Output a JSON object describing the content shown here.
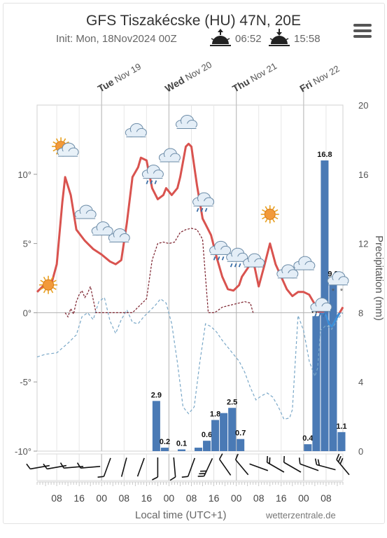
{
  "header": {
    "title": "GFS Tiszakécske (HU) 47N, 20E",
    "init": "Init: Mon, 18Nov2024 00Z",
    "sunrise": "06:52",
    "sunset": "15:58"
  },
  "footer": {
    "xlabel": "Local time (UTC+1)",
    "credit": "wetterzentrale.de"
  },
  "chart_data": {
    "type": "line",
    "x_unit": "hours since Mon 18 Nov 00:00 local",
    "day_labels": [
      {
        "weekday": "Tue",
        "date": "Nov 19",
        "x": 24
      },
      {
        "weekday": "Wed",
        "date": "Nov 20",
        "x": 48
      },
      {
        "weekday": "Thu",
        "date": "Nov 21",
        "x": 72
      },
      {
        "weekday": "Fri",
        "date": "Nov 22",
        "x": 96
      }
    ],
    "x_ticks": [
      {
        "x": 8,
        "label": "08"
      },
      {
        "x": 16,
        "label": "16"
      },
      {
        "x": 24,
        "label": "00"
      },
      {
        "x": 32,
        "label": "08"
      },
      {
        "x": 40,
        "label": "16"
      },
      {
        "x": 48,
        "label": "00"
      },
      {
        "x": 56,
        "label": "08"
      },
      {
        "x": 64,
        "label": "16"
      },
      {
        "x": 72,
        "label": "00"
      },
      {
        "x": 80,
        "label": "08"
      },
      {
        "x": 88,
        "label": "16"
      },
      {
        "x": 96,
        "label": "00"
      },
      {
        "x": 104,
        "label": "08"
      }
    ],
    "x_range": [
      1,
      110
    ],
    "y_left": {
      "ticks": [
        {
          "v": 10,
          "label": "10°"
        },
        {
          "v": 5,
          "label": "5°"
        },
        {
          "v": 0,
          "label": "0°"
        },
        {
          "v": -5,
          "label": "-5°"
        },
        {
          "v": -10,
          "label": "-10°"
        }
      ],
      "range": [
        -10,
        15
      ]
    },
    "y_right": {
      "label": "Precipitation (mm)",
      "ticks": [
        {
          "v": 20,
          "label": "20"
        },
        {
          "v": 16,
          "label": "16"
        },
        {
          "v": 12,
          "label": "12"
        },
        {
          "v": 8,
          "label": "8"
        },
        {
          "v": 4,
          "label": "4"
        },
        {
          "v": 0,
          "label": "0"
        }
      ],
      "range": [
        0,
        20
      ]
    },
    "temperature": {
      "color": "#d9534f",
      "x": [
        1,
        3,
        5,
        6,
        8,
        10,
        11,
        13,
        15,
        18,
        21,
        24,
        27,
        29,
        31,
        33,
        35,
        37,
        38,
        40,
        42,
        44,
        46,
        47,
        49,
        51,
        52,
        54,
        55,
        56,
        58,
        60,
        61,
        63,
        65,
        67,
        69,
        71,
        73,
        74,
        76,
        78,
        80,
        82,
        84,
        86,
        88,
        90,
        92,
        94,
        96,
        98,
        100,
        101,
        102,
        103,
        104,
        105,
        106,
        108,
        110
      ],
      "y": [
        1.5,
        1.9,
        2.0,
        2.0,
        3.5,
        8.0,
        9.8,
        8.5,
        6.0,
        5.2,
        4.6,
        4.2,
        3.7,
        3.5,
        3.8,
        6.5,
        9.8,
        10.5,
        11.2,
        11.0,
        9.0,
        8.2,
        8.5,
        9.0,
        8.5,
        9.0,
        9.8,
        12.0,
        12.2,
        12.0,
        9.2,
        6.8,
        6.4,
        5.6,
        4.0,
        2.6,
        1.7,
        1.6,
        2.0,
        2.6,
        3.2,
        3.8,
        1.9,
        3.4,
        5.0,
        3.5,
        2.6,
        1.7,
        1.2,
        1.5,
        1.5,
        1.3,
        0.6,
        0.1,
        0.0,
        0.0,
        -0.2,
        -0.8,
        -1.0,
        -0.3,
        0.4
      ]
    },
    "dewpoint": {
      "color": "#7aa8c8",
      "x": [
        1,
        4,
        8,
        12,
        15,
        17,
        19,
        21,
        23,
        25,
        27,
        29,
        31,
        33,
        35,
        37,
        39,
        41,
        43,
        45,
        47,
        49,
        51,
        53,
        55,
        57,
        59,
        61,
        63,
        65,
        67,
        69,
        71,
        73,
        75,
        77,
        79,
        81,
        83,
        85,
        87,
        89,
        91,
        92,
        94,
        96,
        98,
        100,
        101,
        102,
        104,
        106,
        108,
        110
      ],
      "y": [
        -3.2,
        -3.0,
        -2.9,
        -2.2,
        -1.6,
        -0.3,
        0.0,
        -0.5,
        0.8,
        1.1,
        -0.6,
        -1.5,
        -0.5,
        0.2,
        -0.7,
        -0.8,
        -0.3,
        0.1,
        0.5,
        1.0,
        0.7,
        -0.8,
        -3.6,
        -6.8,
        -7.3,
        -6.8,
        -3.6,
        -0.8,
        -1.0,
        -1.4,
        -2.0,
        -2.5,
        -3.0,
        -3.5,
        -4.3,
        -5.4,
        -6.3,
        -6.0,
        -5.8,
        -6.1,
        -6.8,
        -7.7,
        -7.6,
        -7.0,
        -0.2,
        -1.3,
        -3.5,
        -4.6,
        -4.0,
        -1.3,
        -0.9,
        -1.2,
        -0.5,
        0.0
      ]
    },
    "t850": {
      "color": "#7a1f2b",
      "x": [
        11,
        12,
        13,
        14,
        15,
        16,
        17,
        18,
        19,
        20,
        22,
        24,
        27,
        29,
        31,
        33,
        35,
        37,
        38,
        40,
        42,
        44,
        46,
        48,
        50,
        52,
        54,
        56,
        58,
        60,
        62,
        63,
        64,
        65,
        67,
        69,
        71,
        73,
        75,
        77,
        78
      ],
      "y": [
        0.0,
        -0.3,
        0.3,
        -0.1,
        0.8,
        1.3,
        1.6,
        1.1,
        1.4,
        1.9,
        0.0,
        0.0,
        0.0,
        0.0,
        0.0,
        0.0,
        0.0,
        0.4,
        0.6,
        1.0,
        3.8,
        5.0,
        5.1,
        5.0,
        5.1,
        5.8,
        6.0,
        6.1,
        6.0,
        5.3,
        0.0,
        0.0,
        0.0,
        0.1,
        0.4,
        0.5,
        0.6,
        0.7,
        0.8,
        0.7,
        0.0
      ]
    },
    "precip_bars": [
      {
        "x": 43.5,
        "mm": 2.9,
        "label": "2.9"
      },
      {
        "x": 46.5,
        "mm": 0.2,
        "label": "0.2"
      },
      {
        "x": 52.5,
        "mm": 0.1,
        "label": "0.1"
      },
      {
        "x": 58.5,
        "mm": 0.2,
        "label": ""
      },
      {
        "x": 61.5,
        "mm": 0.6,
        "label": "0.6"
      },
      {
        "x": 64.5,
        "mm": 1.8,
        "label": "1.8"
      },
      {
        "x": 67.5,
        "mm": 2.2,
        "label": ""
      },
      {
        "x": 70.5,
        "mm": 2.5,
        "label": "2.5"
      },
      {
        "x": 73.5,
        "mm": 0.7,
        "label": "0.7"
      },
      {
        "x": 97.5,
        "mm": 0.4,
        "label": "0.4"
      },
      {
        "x": 100.5,
        "mm": 7.8,
        "label": "7.8"
      },
      {
        "x": 103.5,
        "mm": 16.8,
        "label": "16.8"
      },
      {
        "x": 106.5,
        "mm": 9.9,
        "label": "9.9"
      },
      {
        "x": 109.5,
        "mm": 1.1,
        "label": "1.1"
      }
    ],
    "bar_color": "#4a7ab5",
    "weather_icons": [
      {
        "x": 5,
        "t": 1.3,
        "type": "sun"
      },
      {
        "x": 11,
        "t": 11.1,
        "type": "partly-sunny"
      },
      {
        "x": 18,
        "t": 6.5,
        "type": "cloud"
      },
      {
        "x": 24,
        "t": 5.3,
        "type": "cloud"
      },
      {
        "x": 30,
        "t": 4.8,
        "type": "cloud"
      },
      {
        "x": 36,
        "t": 12.4,
        "type": "cloud"
      },
      {
        "x": 42,
        "t": 9.4,
        "type": "cloud-rain"
      },
      {
        "x": 48,
        "t": 10.6,
        "type": "cloud"
      },
      {
        "x": 54,
        "t": 13.0,
        "type": "cloud"
      },
      {
        "x": 60,
        "t": 7.4,
        "type": "cloud-rain"
      },
      {
        "x": 66,
        "t": 3.9,
        "type": "cloud-rain"
      },
      {
        "x": 72,
        "t": 3.4,
        "type": "cloud-rain"
      },
      {
        "x": 78,
        "t": 3.0,
        "type": "cloud"
      },
      {
        "x": 84,
        "t": 6.4,
        "type": "sun"
      },
      {
        "x": 90,
        "t": 2.2,
        "type": "cloud"
      },
      {
        "x": 96,
        "t": 2.8,
        "type": "cloud"
      },
      {
        "x": 102,
        "t": -0.2,
        "type": "cloud-rain"
      },
      {
        "x": 108,
        "t": 1.7,
        "type": "cloud-snow"
      }
    ],
    "wind_barbs": [
      {
        "x": 2,
        "deg": 260,
        "barbs": 1
      },
      {
        "x": 8,
        "deg": 260,
        "barbs": 1
      },
      {
        "x": 14,
        "deg": 265,
        "barbs": 1
      },
      {
        "x": 20,
        "deg": 265,
        "barbs": 1
      },
      {
        "x": 26,
        "deg": 200,
        "barbs": 1
      },
      {
        "x": 32,
        "deg": 195,
        "barbs": 0
      },
      {
        "x": 38,
        "deg": 200,
        "barbs": 0
      },
      {
        "x": 44,
        "deg": 180,
        "barbs": 1
      },
      {
        "x": 50,
        "deg": 175,
        "barbs": 1
      },
      {
        "x": 56,
        "deg": 200,
        "barbs": 1
      },
      {
        "x": 62,
        "deg": 205,
        "barbs": 3
      },
      {
        "x": 68,
        "deg": 325,
        "barbs": 1
      },
      {
        "x": 74,
        "deg": 320,
        "barbs": 1
      },
      {
        "x": 80,
        "deg": 290,
        "barbs": 0
      },
      {
        "x": 86,
        "deg": 300,
        "barbs": 2
      },
      {
        "x": 92,
        "deg": 300,
        "barbs": 1
      },
      {
        "x": 98,
        "deg": 290,
        "barbs": 1
      },
      {
        "x": 104,
        "deg": 285,
        "barbs": 2
      },
      {
        "x": 110,
        "deg": 320,
        "barbs": 3
      }
    ]
  }
}
